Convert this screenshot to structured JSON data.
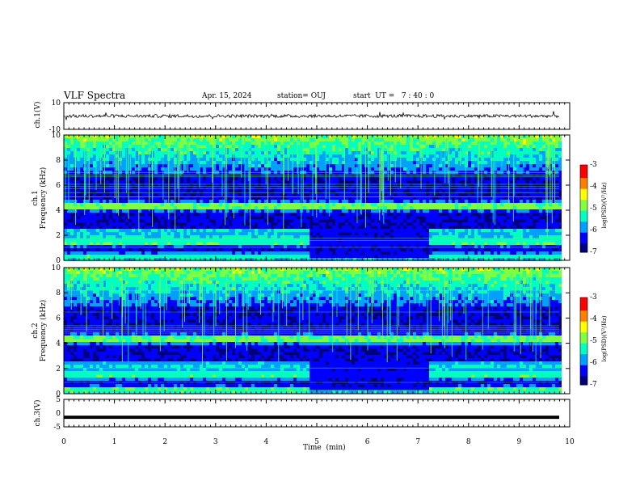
{
  "header": {
    "title": "VLF Spectra",
    "date": "Apr. 15, 2024",
    "station": "station= OUJ",
    "start": "start  UT =   7 : 40 : 0"
  },
  "colors": {
    "waveform": "#000000",
    "colormap": [
      "#00007f",
      "#0000ff",
      "#00a0ff",
      "#00ffc0",
      "#80ff40",
      "#ffff00",
      "#ff8000",
      "#ff0000",
      "#ffffff"
    ]
  },
  "chart_data": [
    {
      "type": "line",
      "panel": "ch1-waveform",
      "ylabel": "ch.1(V)",
      "ylim": [
        -10,
        10
      ],
      "yticks": [
        10,
        -10
      ],
      "x_range_min": [
        0,
        9.85
      ],
      "baseline": 0,
      "grid": false
    },
    {
      "type": "heatmap",
      "panel": "ch1-spectrogram",
      "ylabel_line1": "ch.1",
      "ylabel_line2": "Frequency (kHz)",
      "ylim": [
        0,
        10
      ],
      "yticks": [
        0,
        2,
        4,
        6,
        8,
        10
      ],
      "x_range_min": [
        0,
        9.85
      ],
      "colorbar": {
        "label": "log(PSD)(V²/Hz)",
        "range": [
          -7,
          -3
        ],
        "ticks": [
          "-3",
          "-4",
          "-5",
          "-6",
          "-7"
        ]
      },
      "bands_khz": [
        1.5,
        1.9,
        2.4,
        4.3,
        4.6,
        0.5
      ],
      "quiet_interval_min": [
        4.85,
        7.2
      ],
      "grid": false
    },
    {
      "type": "heatmap",
      "panel": "ch2-spectrogram",
      "ylabel_line1": "ch.2",
      "ylabel_line2": "Frequency (kHz)",
      "ylim": [
        0,
        10
      ],
      "yticks": [
        0,
        2,
        4,
        6,
        8,
        10
      ],
      "x_range_min": [
        0,
        9.85
      ],
      "colorbar": {
        "label": "log(PSD)(V²/Hz)",
        "range": [
          -7,
          -3
        ],
        "ticks": [
          "-3",
          "-4",
          "-5",
          "-6",
          "-7"
        ]
      },
      "bands_khz": [
        1.5,
        1.9,
        2.4,
        4.3,
        4.6,
        0.5
      ],
      "quiet_interval_min": [
        4.85,
        7.2
      ],
      "grid": false
    },
    {
      "type": "line",
      "panel": "ch3-waveform",
      "ylabel": "ch.3(V)",
      "ylim": [
        -5,
        5
      ],
      "yticks": [
        5,
        0,
        -5
      ],
      "x_range_min": [
        0,
        9.85
      ],
      "level": -1.5,
      "xlabel": "Time  (min)",
      "xticks": [
        0,
        1,
        2,
        3,
        4,
        5,
        6,
        7,
        8,
        9,
        10
      ],
      "xlim": [
        0,
        10
      ],
      "grid": false
    }
  ]
}
